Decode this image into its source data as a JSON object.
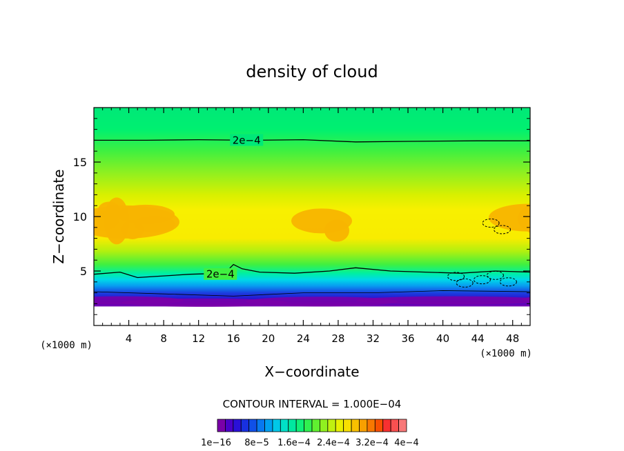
{
  "chart_data": {
    "type": "heatmap",
    "title": "density of cloud",
    "xlabel": "X−coordinate",
    "ylabel": "Z−coordinate",
    "x_unit_left": "(×1000 m)",
    "x_unit_right": "(×1000 m)",
    "xlim": [
      0,
      50
    ],
    "ylim": [
      0,
      20
    ],
    "x_ticks": [
      4,
      8,
      12,
      16,
      20,
      24,
      28,
      32,
      36,
      40,
      44,
      48
    ],
    "y_ticks": [
      5,
      10,
      15
    ],
    "contour_interval_text": "CONTOUR INTERVAL = 1.000E−04",
    "contour_labels": [
      {
        "text": "2e−4",
        "x": 17.5,
        "z": 17.0
      },
      {
        "text": "2e−4",
        "x": 14.5,
        "z": 4.7
      }
    ],
    "contours": [
      {
        "level": 0.0002,
        "label": "upper",
        "points": [
          [
            0,
            17.0
          ],
          [
            6,
            17.0
          ],
          [
            12,
            17.05
          ],
          [
            18,
            17.0
          ],
          [
            24,
            17.05
          ],
          [
            30,
            16.85
          ],
          [
            36,
            16.9
          ],
          [
            44,
            16.95
          ],
          [
            50,
            16.95
          ]
        ]
      },
      {
        "level": 0.0002,
        "label": "lower",
        "points": [
          [
            0,
            4.7
          ],
          [
            3,
            4.9
          ],
          [
            5,
            4.4
          ],
          [
            7,
            4.5
          ],
          [
            11,
            4.7
          ],
          [
            15,
            4.8
          ],
          [
            16,
            5.6
          ],
          [
            17,
            5.2
          ],
          [
            19,
            4.9
          ],
          [
            23,
            4.8
          ],
          [
            27,
            5.0
          ],
          [
            30,
            5.3
          ],
          [
            34,
            5.0
          ],
          [
            38,
            4.9
          ],
          [
            42,
            4.8
          ],
          [
            46,
            5.0
          ],
          [
            50,
            4.9
          ]
        ]
      }
    ],
    "colorbar": {
      "colors": [
        "#7a00a8",
        "#4b00c8",
        "#2a10d8",
        "#1830e0",
        "#1050e8",
        "#0878f0",
        "#00a0f0",
        "#00c8e8",
        "#00e0c8",
        "#00e8a0",
        "#10f078",
        "#30f050",
        "#60f030",
        "#90f020",
        "#c0f010",
        "#e8f000",
        "#f8e000",
        "#f8c000",
        "#f8a000",
        "#f87800",
        "#f85000",
        "#f83030",
        "#f85050",
        "#f87878"
      ],
      "tick_labels": [
        "1e−16",
        "8e−5",
        "1.6e−4",
        "2.4e−4",
        "3.2e−4",
        "4e−4"
      ]
    },
    "field_description": "filled contour of cloud density, ~1e-16 to 4e-4",
    "colors": {
      "top_green": "#00e878",
      "mid_yellow": "#f8f000",
      "orange": "#f8b400",
      "blue_band": "#1a30e0",
      "purple": "#7a00a8",
      "cyan": "#00d8e8",
      "contour": "#000000"
    }
  }
}
